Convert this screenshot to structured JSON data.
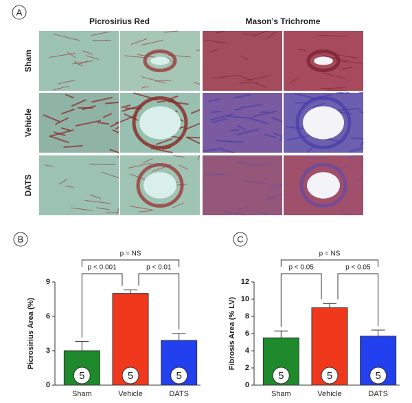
{
  "panels": [
    "A",
    "B",
    "C"
  ],
  "histology": {
    "columns": [
      "Picrosirius Red",
      "Mason’s Trichrome"
    ],
    "rows": [
      "Sham",
      "Vehicle",
      "DATS"
    ]
  },
  "chart_data": [
    {
      "type": "bar",
      "ylabel": "Picrosirius Area (%)",
      "categories": [
        "Sham",
        "Vehicle",
        "DATS"
      ],
      "values": [
        3.0,
        8.0,
        3.9
      ],
      "errors": [
        0.8,
        0.3,
        0.6
      ],
      "n": [
        5,
        5,
        5
      ],
      "colors": [
        "#1e8a2c",
        "#f0391c",
        "#2240ee"
      ],
      "ylim": [
        0,
        9
      ],
      "yticks": [
        0,
        3,
        6,
        9
      ],
      "comparisons": [
        {
          "label": "p = NS",
          "from": 0,
          "to": 2
        },
        {
          "label": "p < 0.001",
          "from": 0,
          "to": 1
        },
        {
          "label": "p < 0.01",
          "from": 1,
          "to": 2
        }
      ]
    },
    {
      "type": "bar",
      "ylabel": "Fibrosis Area (% LV)",
      "categories": [
        "Sham",
        "Vehicle",
        "DATS"
      ],
      "values": [
        5.5,
        9.0,
        5.7
      ],
      "errors": [
        0.8,
        0.5,
        0.7
      ],
      "n": [
        5,
        5,
        5
      ],
      "colors": [
        "#1e8a2c",
        "#f0391c",
        "#2240ee"
      ],
      "ylim": [
        0,
        12
      ],
      "yticks": [
        0,
        2,
        4,
        6,
        8,
        10,
        12
      ],
      "comparisons": [
        {
          "label": "p = NS",
          "from": 0,
          "to": 2
        },
        {
          "label": "p < 0.05",
          "from": 0,
          "to": 1
        },
        {
          "label": "p < 0.05",
          "from": 1,
          "to": 2
        }
      ]
    }
  ]
}
